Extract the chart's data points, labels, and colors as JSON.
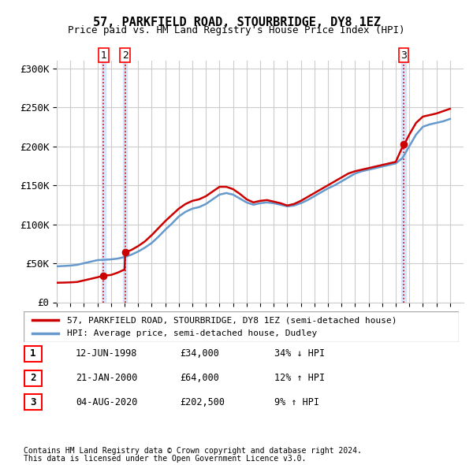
{
  "title": "57, PARKFIELD ROAD, STOURBRIDGE, DY8 1EZ",
  "subtitle": "Price paid vs. HM Land Registry's House Price Index (HPI)",
  "ylabel": "",
  "xlim_start": 1995,
  "xlim_end": 2025,
  "ylim": [
    0,
    310000
  ],
  "yticks": [
    0,
    50000,
    100000,
    150000,
    200000,
    250000,
    300000
  ],
  "ytick_labels": [
    "£0",
    "£50K",
    "£100K",
    "£150K",
    "£200K",
    "£250K",
    "£300K"
  ],
  "transaction_color": "#cc0000",
  "hpi_color": "#6699cc",
  "grid_color": "#cccccc",
  "background_color": "#ffffff",
  "transactions": [
    {
      "date_num": 1998.44,
      "price": 34000,
      "label": "1"
    },
    {
      "date_num": 2000.05,
      "price": 64000,
      "label": "2"
    },
    {
      "date_num": 2020.58,
      "price": 202500,
      "label": "3"
    }
  ],
  "transaction_table": [
    {
      "num": "1",
      "date": "12-JUN-1998",
      "price": "£34,000",
      "hpi": "34% ↓ HPI"
    },
    {
      "num": "2",
      "date": "21-JAN-2000",
      "price": "£64,000",
      "hpi": "12% ↑ HPI"
    },
    {
      "num": "3",
      "date": "04-AUG-2020",
      "price": "£202,500",
      "hpi": "9% ↑ HPI"
    }
  ],
  "legend_line1": "57, PARKFIELD ROAD, STOURBRIDGE, DY8 1EZ (semi-detached house)",
  "legend_line2": "HPI: Average price, semi-detached house, Dudley",
  "footnote1": "Contains HM Land Registry data © Crown copyright and database right 2024.",
  "footnote2": "This data is licensed under the Open Government Licence v3.0.",
  "vline_color": "#cc0000",
  "vline_style": ":",
  "vline_shade": "#ccddff",
  "hpi_years": [
    1995,
    1995.5,
    1996,
    1996.5,
    1997,
    1997.5,
    1998,
    1998.5,
    1999,
    1999.5,
    2000,
    2000.5,
    2001,
    2001.5,
    2002,
    2002.5,
    2003,
    2003.5,
    2004,
    2004.5,
    2005,
    2005.5,
    2006,
    2006.5,
    2007,
    2007.5,
    2008,
    2008.5,
    2009,
    2009.5,
    2010,
    2010.5,
    2011,
    2011.5,
    2012,
    2012.5,
    2013,
    2013.5,
    2014,
    2014.5,
    2015,
    2015.5,
    2016,
    2016.5,
    2017,
    2017.5,
    2018,
    2018.5,
    2019,
    2019.5,
    2020,
    2020.5,
    2021,
    2021.5,
    2022,
    2022.5,
    2023,
    2023.5,
    2024
  ],
  "hpi_values": [
    46000,
    46500,
    47000,
    48000,
    50000,
    52000,
    54000,
    54500,
    55000,
    56000,
    58000,
    61000,
    65000,
    70000,
    76000,
    84000,
    93000,
    101000,
    110000,
    116000,
    120000,
    122000,
    126000,
    132000,
    138000,
    140000,
    138000,
    133000,
    128000,
    125000,
    127000,
    128000,
    127000,
    125000,
    123000,
    124000,
    127000,
    131000,
    136000,
    141000,
    146000,
    150000,
    155000,
    160000,
    165000,
    168000,
    170000,
    172000,
    174000,
    176000,
    178000,
    185000,
    200000,
    215000,
    225000,
    228000,
    230000,
    232000,
    235000
  ],
  "price_years": [
    1995,
    1995.5,
    1996,
    1996.5,
    1997,
    1997.5,
    1998,
    1998.44,
    1998.5,
    1999,
    1999.5,
    2000,
    2000.05,
    2000.5,
    2001,
    2001.5,
    2002,
    2002.5,
    2003,
    2003.5,
    2004,
    2004.5,
    2005,
    2005.5,
    2006,
    2006.5,
    2007,
    2007.5,
    2008,
    2008.5,
    2009,
    2009.5,
    2010,
    2010.5,
    2011,
    2011.5,
    2012,
    2012.5,
    2013,
    2013.5,
    2014,
    2014.5,
    2015,
    2015.5,
    2016,
    2016.5,
    2017,
    2017.5,
    2018,
    2018.5,
    2019,
    2019.5,
    2020,
    2020.58,
    2020.5,
    2021,
    2021.5,
    2022,
    2022.5,
    2023,
    2023.5,
    2024
  ],
  "price_values": [
    25000,
    25200,
    25500,
    26000,
    28000,
    30000,
    32000,
    34000,
    34100,
    35000,
    38000,
    42000,
    64000,
    67000,
    72000,
    78000,
    86000,
    95000,
    104000,
    112000,
    120000,
    126000,
    130000,
    132000,
    136000,
    142000,
    148000,
    148000,
    145000,
    139000,
    132000,
    128000,
    130000,
    131000,
    129000,
    127000,
    124000,
    126000,
    130000,
    135000,
    140000,
    145000,
    150000,
    155000,
    160000,
    165000,
    168000,
    170000,
    172000,
    174000,
    176000,
    178000,
    180000,
    202500,
    198000,
    215000,
    230000,
    238000,
    240000,
    242000,
    245000,
    248000
  ]
}
